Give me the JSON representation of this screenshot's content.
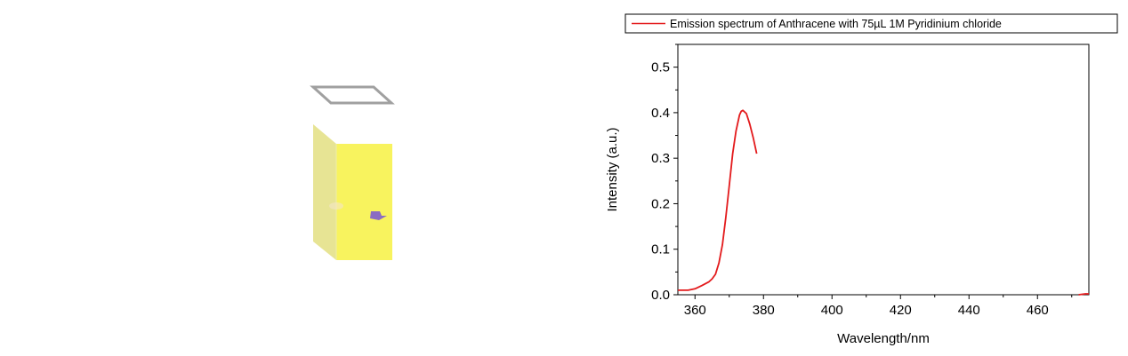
{
  "colors": {
    "series": "#e31a1c",
    "cuvette_front": "#f8f35e",
    "cuvette_side": "#e7e494",
    "lid": "#999999",
    "arrow": "#8b6cc2"
  },
  "icons": {
    "cuvette": "cuvette-illustration-icon",
    "arrow": "arrow-icon"
  },
  "chart_data": {
    "type": "line",
    "xlabel": "Wavelength/nm",
    "ylabel": "Intensity (a.u.)",
    "xlim": [
      355,
      475
    ],
    "ylim": [
      0,
      0.55
    ],
    "x_ticks": [
      360,
      380,
      400,
      420,
      440,
      460
    ],
    "y_ticks": [
      0.0,
      0.1,
      0.2,
      0.3,
      0.4,
      0.5
    ],
    "x_tick_labels": [
      "360",
      "380",
      "400",
      "420",
      "440",
      "460"
    ],
    "y_tick_labels": [
      "0.0",
      "0.1",
      "0.2",
      "0.3",
      "0.4",
      "0.5"
    ],
    "legend_position": "top",
    "grid": false,
    "series": [
      {
        "name": "Emission spectrum of Anthracene with 75µL 1M Pyridinium chloride",
        "segments": [
          {
            "x": [
              355,
              356,
              358,
              360,
              362,
              364,
              365,
              366,
              367,
              368,
              369,
              370,
              371,
              372,
              373,
              373.5,
              374,
              375,
              376,
              377,
              378
            ],
            "y": [
              0.01,
              0.01,
              0.01,
              0.013,
              0.02,
              0.028,
              0.035,
              0.045,
              0.07,
              0.11,
              0.17,
              0.24,
              0.31,
              0.36,
              0.395,
              0.403,
              0.405,
              0.398,
              0.375,
              0.345,
              0.31
            ]
          },
          {
            "x": [
              472,
              473,
              474,
              475
            ],
            "y": [
              0.0,
              0.001,
              0.002,
              0.002
            ]
          }
        ]
      }
    ]
  }
}
